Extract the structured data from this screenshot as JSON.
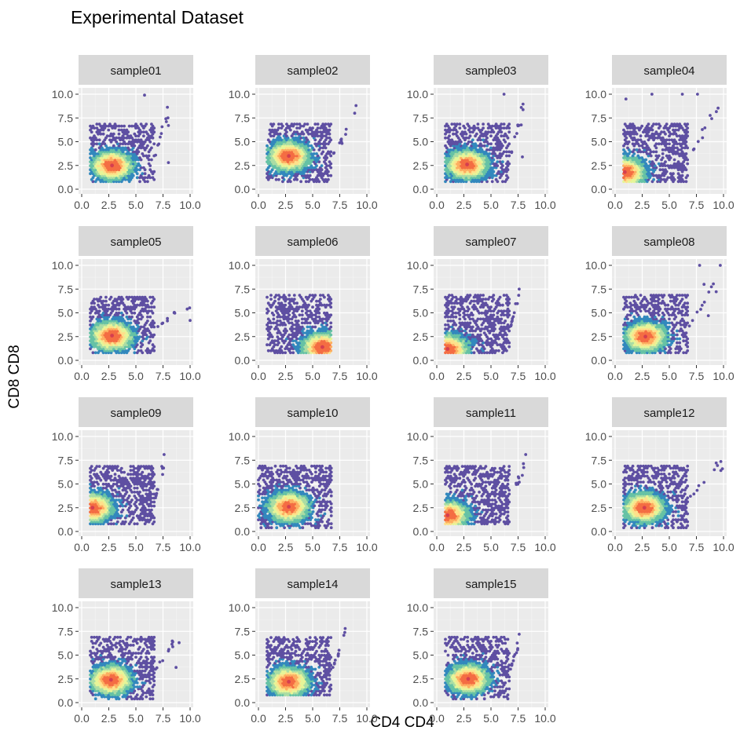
{
  "chart_data": {
    "type": "scatter",
    "subtype": "hexbin-density facets",
    "title": "Experimental Dataset",
    "xlabel": "CD4 CD4",
    "ylabel": "CD8 CD8",
    "xlim": [
      0,
      10
    ],
    "ylim": [
      0,
      10
    ],
    "x_ticks": [
      "0.0",
      "2.5",
      "5.0",
      "7.5",
      "10.0"
    ],
    "y_ticks": [
      "0.0",
      "2.5",
      "5.0",
      "7.5",
      "10.0"
    ],
    "grid": true,
    "legend": "none",
    "palette": [
      "#5e4fa2",
      "#3288bd",
      "#66c2a5",
      "#abdda4",
      "#e6f598",
      "#fee08b",
      "#fdae61",
      "#f46d43",
      "#d53e4f"
    ],
    "panel_background": "#ebebeb",
    "strip_background": "#d9d9d9",
    "panels": [
      {
        "name": "sample01",
        "x_range": [
          0.8,
          8.0
        ],
        "y_range": [
          0.8,
          10.0
        ],
        "densest_point": [
          2.8,
          2.5
        ],
        "outliers": [
          [
            5.8,
            9.9
          ],
          [
            8.0,
            6.7
          ],
          [
            8.0,
            2.8
          ]
        ]
      },
      {
        "name": "sample02",
        "x_range": [
          0.8,
          9.0
        ],
        "y_range": [
          0.8,
          8.8
        ],
        "densest_point": [
          2.8,
          3.5
        ],
        "outliers": [
          [
            9.0,
            8.8
          ]
        ]
      },
      {
        "name": "sample03",
        "x_range": [
          0.8,
          8.0
        ],
        "y_range": [
          0.8,
          10.0
        ],
        "densest_point": [
          2.8,
          2.6
        ],
        "outliers": [
          [
            6.2,
            10.0
          ],
          [
            7.9,
            3.4
          ],
          [
            7.8,
            8.6
          ]
        ]
      },
      {
        "name": "sample04",
        "x_range": [
          0.8,
          9.6
        ],
        "y_range": [
          0.8,
          10.0
        ],
        "densest_point": [
          0.9,
          1.8
        ],
        "outliers": [
          [
            1.0,
            9.5
          ],
          [
            3.4,
            10.0
          ],
          [
            6.2,
            10.0
          ],
          [
            7.6,
            10.0
          ]
        ]
      },
      {
        "name": "sample05",
        "x_range": [
          0.8,
          10.0
        ],
        "y_range": [
          0.8,
          6.8
        ],
        "densest_point": [
          2.8,
          2.6
        ],
        "outliers": [
          [
            10.0,
            4.2
          ]
        ]
      },
      {
        "name": "sample06",
        "x_range": [
          0.8,
          6.8
        ],
        "y_range": [
          0.8,
          7.0
        ],
        "densest_point": [
          5.9,
          1.4
        ],
        "outliers": []
      },
      {
        "name": "sample07",
        "x_range": [
          0.8,
          7.6
        ],
        "y_range": [
          0.8,
          7.9
        ],
        "densest_point": [
          1.0,
          1.2
        ],
        "outliers": [
          [
            7.6,
            7.5
          ]
        ]
      },
      {
        "name": "sample08",
        "x_range": [
          0.8,
          9.7
        ],
        "y_range": [
          0.8,
          10.0
        ],
        "densest_point": [
          2.8,
          2.5
        ],
        "outliers": [
          [
            7.8,
            10.0
          ],
          [
            9.7,
            10.0
          ],
          [
            8.2,
            8.0
          ],
          [
            8.6,
            4.7
          ]
        ]
      },
      {
        "name": "sample09",
        "x_range": [
          0.8,
          7.6
        ],
        "y_range": [
          0.8,
          8.1
        ],
        "densest_point": [
          1.0,
          2.5
        ],
        "outliers": [
          [
            7.6,
            8.1
          ]
        ]
      },
      {
        "name": "sample10",
        "x_range": [
          0.0,
          7.0
        ],
        "y_range": [
          0.4,
          7.0
        ],
        "densest_point": [
          2.8,
          2.6
        ],
        "outliers": []
      },
      {
        "name": "sample11",
        "x_range": [
          0.8,
          8.2
        ],
        "y_range": [
          0.8,
          8.1
        ],
        "densest_point": [
          1.0,
          1.7
        ],
        "outliers": [
          [
            8.2,
            8.1
          ]
        ]
      },
      {
        "name": "sample12",
        "x_range": [
          0.8,
          9.9
        ],
        "y_range": [
          0.4,
          8.1
        ],
        "densest_point": [
          2.7,
          2.5
        ],
        "outliers": [
          [
            9.9,
            6.6
          ]
        ]
      },
      {
        "name": "sample13",
        "x_range": [
          0.8,
          9.0
        ],
        "y_range": [
          0.4,
          7.8
        ],
        "densest_point": [
          2.7,
          2.4
        ],
        "outliers": [
          [
            8.7,
            3.7
          ],
          [
            8.4,
            6.4
          ]
        ]
      },
      {
        "name": "sample14",
        "x_range": [
          0.8,
          8.0
        ],
        "y_range": [
          0.8,
          7.8
        ],
        "densest_point": [
          2.8,
          2.2
        ],
        "outliers": [
          [
            8.0,
            7.8
          ]
        ]
      },
      {
        "name": "sample15",
        "x_range": [
          0.8,
          7.6
        ],
        "y_range": [
          0.4,
          7.2
        ],
        "densest_point": [
          2.9,
          2.5
        ],
        "outliers": [
          [
            7.6,
            7.2
          ]
        ]
      }
    ]
  }
}
